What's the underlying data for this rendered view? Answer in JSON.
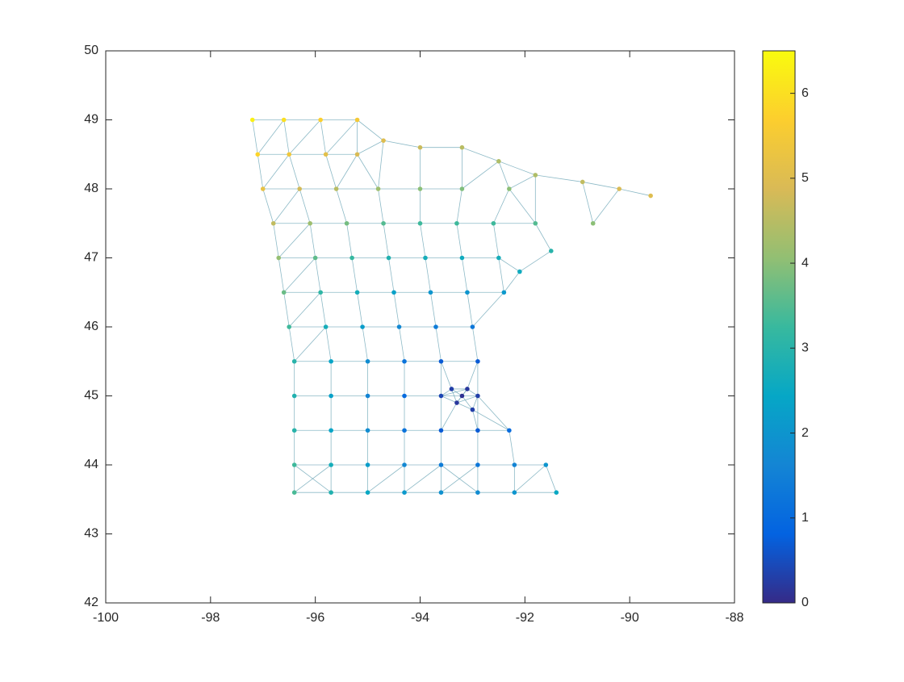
{
  "chart_data": {
    "type": "scatter",
    "x": [
      -97.2,
      -96.6,
      -95.9,
      -95.2,
      -94.7,
      -94.0,
      -93.2,
      -92.5,
      -91.8,
      -90.9,
      -90.2,
      -89.6,
      -90.7,
      -91.5,
      -92.1,
      -97.1,
      -96.5,
      -95.8,
      -95.2,
      -97.0,
      -96.3,
      -95.6,
      -94.8,
      -94.0,
      -93.2,
      -92.3,
      -96.8,
      -96.1,
      -95.4,
      -94.7,
      -94.0,
      -93.3,
      -92.6,
      -91.8,
      -96.7,
      -96.0,
      -95.3,
      -94.6,
      -93.9,
      -93.2,
      -92.5,
      -96.6,
      -95.9,
      -95.2,
      -94.5,
      -93.8,
      -93.1,
      -92.4,
      -96.5,
      -95.8,
      -95.1,
      -94.4,
      -93.7,
      -93.0,
      -96.4,
      -95.7,
      -95.0,
      -94.3,
      -93.6,
      -92.9,
      -96.4,
      -95.7,
      -95.0,
      -94.3,
      -93.6,
      -93.2,
      -92.9,
      -96.4,
      -95.7,
      -95.0,
      -94.3,
      -93.6,
      -92.9,
      -92.3,
      -96.4,
      -95.7,
      -95.0,
      -94.3,
      -93.6,
      -92.9,
      -92.2,
      -91.6,
      -96.4,
      -95.7,
      -95.0,
      -94.3,
      -93.6,
      -92.9,
      -92.2,
      -91.4,
      -93.3,
      -93.1,
      -93.4,
      -93.0
    ],
    "y": [
      49.0,
      49.0,
      49.0,
      49.0,
      48.7,
      48.6,
      48.6,
      48.4,
      48.2,
      48.1,
      48.0,
      47.9,
      47.5,
      47.1,
      46.8,
      48.5,
      48.5,
      48.5,
      48.5,
      48.0,
      48.0,
      48.0,
      48.0,
      48.0,
      48.0,
      48.0,
      47.5,
      47.5,
      47.5,
      47.5,
      47.5,
      47.5,
      47.5,
      47.5,
      47.0,
      47.0,
      47.0,
      47.0,
      47.0,
      47.0,
      47.0,
      46.5,
      46.5,
      46.5,
      46.5,
      46.5,
      46.5,
      46.5,
      46.0,
      46.0,
      46.0,
      46.0,
      46.0,
      46.0,
      45.5,
      45.5,
      45.5,
      45.5,
      45.5,
      45.5,
      45.0,
      45.0,
      45.0,
      45.0,
      45.0,
      45.0,
      45.0,
      44.5,
      44.5,
      44.5,
      44.5,
      44.5,
      44.5,
      44.5,
      44.0,
      44.0,
      44.0,
      44.0,
      44.0,
      44.0,
      44.0,
      44.0,
      43.6,
      43.6,
      43.6,
      43.6,
      43.6,
      43.6,
      43.6,
      43.6,
      44.9,
      45.1,
      45.1,
      44.8
    ],
    "values": [
      6.3,
      6.0,
      5.7,
      5.5,
      5.0,
      4.7,
      4.5,
      4.4,
      4.4,
      4.6,
      4.9,
      5.0,
      4.0,
      3.0,
      2.6,
      5.8,
      5.4,
      5.1,
      4.9,
      5.2,
      4.8,
      4.5,
      4.2,
      4.0,
      3.9,
      4.0,
      4.6,
      4.2,
      3.8,
      3.5,
      3.3,
      3.3,
      3.3,
      3.5,
      4.1,
      3.6,
      3.2,
      2.9,
      2.7,
      2.6,
      2.7,
      3.7,
      3.1,
      2.7,
      2.3,
      2.0,
      2.0,
      2.1,
      3.3,
      2.7,
      2.2,
      1.7,
      1.4,
      1.3,
      3.0,
      2.4,
      1.8,
      1.2,
      0.7,
      0.7,
      2.9,
      2.3,
      1.6,
      1.0,
      0.4,
      0.1,
      0.3,
      3.0,
      2.4,
      1.8,
      1.2,
      0.7,
      0.7,
      1.0,
      3.3,
      2.7,
      2.2,
      1.7,
      1.4,
      1.3,
      1.6,
      2.0,
      3.4,
      2.9,
      2.5,
      2.1,
      1.9,
      1.8,
      2.0,
      2.5,
      0.2,
      0.2,
      0.3,
      0.3
    ],
    "xlim": [
      -100,
      -88
    ],
    "xticks": [
      -100,
      -98,
      -96,
      -94,
      -92,
      -90,
      -88
    ],
    "ylim": [
      42,
      50
    ],
    "yticks": [
      42,
      43,
      44,
      45,
      46,
      47,
      48,
      49,
      50
    ],
    "clim": [
      0,
      6.5
    ],
    "cticks": [
      0,
      1,
      2,
      3,
      4,
      5,
      6
    ],
    "colormap": [
      "#352a87",
      "#0363e1",
      "#1485d4",
      "#06a7c6",
      "#38b99e",
      "#92bf73",
      "#d9ba56",
      "#fcce2e",
      "#f9fb0e"
    ],
    "edge_color": "#6fa8b8"
  }
}
